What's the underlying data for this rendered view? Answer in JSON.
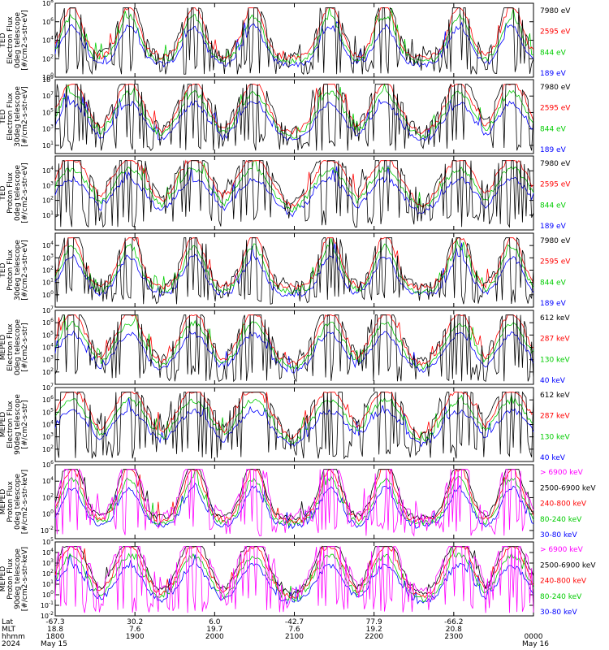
{
  "chart_data": {
    "type": "line",
    "x_time_labels": [
      "1800",
      "1900",
      "2000",
      "2100",
      "2200",
      "2300",
      "0000"
    ],
    "footer": {
      "row_labels": [
        "Lat",
        "MLT",
        "hhmm",
        "2024"
      ],
      "lat": [
        "-67.3",
        "30.2",
        "6.0",
        "-42.7",
        "77.9",
        "-66.2"
      ],
      "mlt": [
        "18.8",
        "7.6",
        "19.7",
        "7.6",
        "19.2",
        "20.8"
      ],
      "date_start": "May 15",
      "date_end": "May 16"
    },
    "panels": [
      {
        "ylabel": [
          "TED",
          "Electron Flux",
          "0deg telescope",
          "[#/cm2-s-str-eV]"
        ],
        "y_exp_range": [
          0,
          8
        ],
        "ticks": [
          0,
          2,
          4,
          6,
          8
        ],
        "legend": [
          {
            "text": "7980 eV",
            "color": "#000000"
          },
          {
            "text": "2595 eV",
            "color": "#ff0000"
          },
          {
            "text": "844 eV",
            "color": "#00cc00"
          },
          {
            "text": "189 eV",
            "color": "#0000ff"
          }
        ]
      },
      {
        "ylabel": [
          "TED",
          "Electron Flux",
          "30deg telescope",
          "[#/cm2-s-str-eV]"
        ],
        "y_exp_range": [
          0,
          9
        ],
        "ticks": [
          1,
          3,
          5,
          7,
          9
        ],
        "legend": [
          {
            "text": "7980 eV",
            "color": "#000000"
          },
          {
            "text": "2595 eV",
            "color": "#ff0000"
          },
          {
            "text": "844 eV",
            "color": "#00cc00"
          },
          {
            "text": "189 eV",
            "color": "#0000ff"
          }
        ]
      },
      {
        "ylabel": [
          "TED",
          "Proton Flux",
          "0deg telescope",
          "[#/cm2-s-str-eV]"
        ],
        "y_exp_range": [
          0,
          5
        ],
        "ticks": [
          1,
          2,
          3,
          4
        ],
        "legend": [
          {
            "text": "7980 eV",
            "color": "#000000"
          },
          {
            "text": "2595 eV",
            "color": "#ff0000"
          },
          {
            "text": "844 eV",
            "color": "#00cc00"
          },
          {
            "text": "189 eV",
            "color": "#0000ff"
          }
        ]
      },
      {
        "ylabel": [
          "TED",
          "Proton Flux",
          "30deg telescope",
          "[#/cm2-s-str-eV]"
        ],
        "y_exp_range": [
          -1,
          5
        ],
        "ticks": [
          0,
          1,
          2,
          3,
          4
        ],
        "legend": [
          {
            "text": "7980 eV",
            "color": "#000000"
          },
          {
            "text": "2595 eV",
            "color": "#ff0000"
          },
          {
            "text": "844 eV",
            "color": "#00cc00"
          },
          {
            "text": "189 eV",
            "color": "#0000ff"
          }
        ]
      },
      {
        "ylabel": [
          "MEPED",
          "Electron Flux",
          "0deg telescope",
          "[#/cm2-s-str]"
        ],
        "y_exp_range": [
          1,
          7
        ],
        "ticks": [
          2,
          3,
          4,
          5,
          6,
          7
        ],
        "legend": [
          {
            "text": "612 keV",
            "color": "#000000"
          },
          {
            "text": "287 keV",
            "color": "#ff0000"
          },
          {
            "text": "130 keV",
            "color": "#00cc00"
          },
          {
            "text": "40 keV",
            "color": "#0000ff"
          }
        ]
      },
      {
        "ylabel": [
          "MEPED",
          "Electron Flux",
          "90deg telescope",
          "[#/cm2-s-str]"
        ],
        "y_exp_range": [
          1,
          7
        ],
        "ticks": [
          2,
          3,
          4,
          5,
          6,
          7
        ],
        "legend": [
          {
            "text": "612 keV",
            "color": "#000000"
          },
          {
            "text": "287 keV",
            "color": "#ff0000"
          },
          {
            "text": "130 keV",
            "color": "#00cc00"
          },
          {
            "text": "40 keV",
            "color": "#0000ff"
          }
        ]
      },
      {
        "ylabel": [
          "MEPED",
          "Proton Flux",
          "0deg telescope",
          "[#/cm2-s-str-keV]"
        ],
        "y_exp_range": [
          -3,
          6
        ],
        "ticks": [
          -2,
          0,
          2,
          4,
          6
        ],
        "legend": [
          {
            "text": "> 6900 keV",
            "color": "#ff00ff"
          },
          {
            "text": "2500-6900 keV",
            "color": "#000000"
          },
          {
            "text": "240-800 keV",
            "color": "#ff0000"
          },
          {
            "text": "80-240 keV",
            "color": "#00cc00"
          },
          {
            "text": "30-80 keV",
            "color": "#0000ff"
          }
        ]
      },
      {
        "ylabel": [
          "MEPED",
          "Proton Flux",
          "90deg telescope",
          "[#/cm2-s-str-keV]"
        ],
        "y_exp_range": [
          -2,
          5
        ],
        "ticks": [
          -2,
          -1,
          0,
          1,
          2,
          3,
          4,
          5
        ],
        "legend": [
          {
            "text": "> 6900 keV",
            "color": "#ff00ff"
          },
          {
            "text": "2500-6900 keV",
            "color": "#000000"
          },
          {
            "text": "240-800 keV",
            "color": "#ff0000"
          },
          {
            "text": "80-240 keV",
            "color": "#00cc00"
          },
          {
            "text": "30-80 keV",
            "color": "#0000ff"
          }
        ]
      }
    ]
  }
}
